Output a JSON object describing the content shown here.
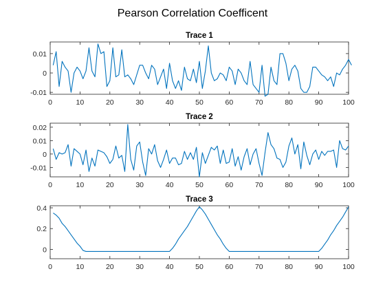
{
  "figure": {
    "title": "Pearson Correlation Coefficent"
  },
  "colors": {
    "line": "#0072bd",
    "axes": "#262626",
    "background": "#ffffff"
  },
  "chart_data": [
    {
      "type": "line",
      "title": "Trace 1",
      "xlim": [
        0,
        100
      ],
      "ylim": [
        -0.011,
        0.016
      ],
      "xticks": [
        0,
        10,
        20,
        30,
        40,
        50,
        60,
        70,
        80,
        90,
        100
      ],
      "xtick_labels": [
        "0",
        "10",
        "20",
        "30",
        "40",
        "50",
        "60",
        "70",
        "80",
        "90",
        "100"
      ],
      "yticks": [
        -0.01,
        0,
        0.01
      ],
      "ytick_labels": [
        "-0.01",
        "0",
        "0.01"
      ],
      "grid": false,
      "series": [
        {
          "x_start": 1,
          "x_step": 1,
          "values": [
            0.004,
            0.011,
            -0.007,
            0.006,
            0.003,
            0.001,
            -0.01,
            0.0,
            0.003,
            0.001,
            -0.003,
            0.001,
            0.013,
            0.001,
            -0.002,
            0.015,
            0.01,
            0.011,
            -0.007,
            -0.004,
            0.013,
            -0.002,
            -0.001,
            0.012,
            -0.002,
            -0.001,
            -0.003,
            -0.006,
            -0.001,
            0.004,
            0.004,
            0.0,
            -0.003,
            0.004,
            0.002,
            -0.006,
            -0.002,
            0.002,
            -0.008,
            0.005,
            -0.004,
            -0.008,
            -0.004,
            -0.009,
            0.003,
            -0.003,
            -0.004,
            0.002,
            -0.005,
            0.006,
            -0.008,
            0.001,
            0.014,
            0.0,
            -0.004,
            -0.003,
            0.0,
            -0.001,
            -0.004,
            0.003,
            0.001,
            -0.006,
            0.002,
            0.0,
            -0.004,
            -0.006,
            0.006,
            -0.006,
            -0.008,
            -0.01,
            0.004,
            -0.012,
            -0.011,
            0.003,
            -0.004,
            -0.006,
            0.01,
            0.01,
            0.005,
            -0.004,
            0.002,
            0.004,
            0.001,
            -0.008,
            -0.01,
            -0.01,
            -0.007,
            0.003,
            0.003,
            0.001,
            -0.001,
            -0.002,
            -0.004,
            -0.002,
            -0.007,
            0.0,
            -0.001,
            0.002,
            0.004,
            0.007,
            0.004
          ]
        }
      ]
    },
    {
      "type": "line",
      "title": "Trace 2",
      "xlim": [
        0,
        100
      ],
      "ylim": [
        -0.017,
        0.023
      ],
      "xticks": [
        0,
        10,
        20,
        30,
        40,
        50,
        60,
        70,
        80,
        90,
        100
      ],
      "xtick_labels": [
        "0",
        "10",
        "20",
        "30",
        "40",
        "50",
        "60",
        "70",
        "80",
        "90",
        "100"
      ],
      "yticks": [
        -0.01,
        0,
        0.01,
        0.02
      ],
      "ytick_labels": [
        "-0.01",
        "0",
        "0.01",
        "0.02"
      ],
      "grid": false,
      "series": [
        {
          "x_start": 1,
          "x_step": 1,
          "values": [
            0.004,
            -0.004,
            0.001,
            0.0,
            0.001,
            0.007,
            -0.009,
            0.004,
            0.002,
            0.0,
            -0.008,
            0.003,
            -0.013,
            -0.003,
            -0.009,
            0.003,
            0.002,
            0.001,
            -0.002,
            -0.007,
            -0.004,
            0.006,
            -0.003,
            -0.001,
            -0.013,
            0.022,
            -0.004,
            -0.012,
            0.006,
            0.009,
            -0.006,
            -0.016,
            0.004,
            0.0,
            0.007,
            -0.005,
            -0.01,
            -0.004,
            0.003,
            -0.007,
            -0.003,
            -0.003,
            -0.008,
            -0.007,
            0.002,
            -0.004,
            0.001,
            -0.004,
            0.005,
            -0.017,
            0.001,
            -0.007,
            -0.001,
            0.005,
            0.003,
            0.006,
            -0.007,
            0.003,
            -0.007,
            -0.006,
            0.004,
            -0.009,
            -0.002,
            -0.012,
            -0.002,
            0.004,
            -0.008,
            0.0,
            0.004,
            -0.007,
            -0.016,
            0.001,
            0.016,
            0.007,
            0.004,
            -0.003,
            -0.004,
            -0.01,
            -0.006,
            0.006,
            0.012,
            0.0,
            0.007,
            -0.011,
            0.009,
            -0.001,
            -0.008,
            0.0,
            0.003,
            -0.004,
            0.002,
            -0.001,
            0.002,
            0.002,
            0.003,
            -0.01,
            0.01,
            0.004,
            0.003,
            0.006
          ]
        }
      ]
    },
    {
      "type": "line",
      "title": "Trace 3",
      "xlim": [
        0,
        100
      ],
      "ylim": [
        -0.09,
        0.42
      ],
      "xticks": [
        0,
        10,
        20,
        30,
        40,
        50,
        60,
        70,
        80,
        90,
        100
      ],
      "xtick_labels": [
        "0",
        "10",
        "20",
        "30",
        "40",
        "50",
        "60",
        "70",
        "80",
        "90",
        "100"
      ],
      "yticks": [
        0,
        0.2,
        0.4
      ],
      "ytick_labels": [
        "0",
        "0.2",
        "0.4"
      ],
      "grid": false,
      "series": [
        {
          "x_start": 1,
          "x_step": 1,
          "values": [
            0.35,
            0.33,
            0.3,
            0.25,
            0.22,
            0.18,
            0.14,
            0.1,
            0.06,
            0.03,
            -0.01,
            -0.02,
            -0.02,
            -0.02,
            -0.02,
            -0.02,
            -0.02,
            -0.02,
            -0.02,
            -0.02,
            -0.02,
            -0.02,
            -0.02,
            -0.02,
            -0.02,
            -0.02,
            -0.02,
            -0.02,
            -0.02,
            -0.02,
            -0.02,
            -0.02,
            -0.02,
            -0.02,
            -0.02,
            -0.02,
            -0.02,
            -0.02,
            -0.02,
            -0.02,
            0.01,
            0.05,
            0.1,
            0.14,
            0.18,
            0.22,
            0.27,
            0.32,
            0.37,
            0.41,
            0.38,
            0.34,
            0.29,
            0.24,
            0.19,
            0.14,
            0.1,
            0.05,
            0.01,
            -0.02,
            -0.02,
            -0.02,
            -0.02,
            -0.02,
            -0.02,
            -0.02,
            -0.02,
            -0.02,
            -0.02,
            -0.02,
            -0.02,
            -0.02,
            -0.02,
            -0.02,
            -0.02,
            -0.02,
            -0.02,
            -0.02,
            -0.02,
            -0.02,
            -0.02,
            -0.02,
            -0.02,
            -0.02,
            -0.02,
            -0.02,
            -0.02,
            -0.02,
            -0.02,
            -0.02,
            0.01,
            0.05,
            0.09,
            0.14,
            0.18,
            0.23,
            0.27,
            0.31,
            0.36,
            0.41
          ]
        }
      ]
    }
  ]
}
